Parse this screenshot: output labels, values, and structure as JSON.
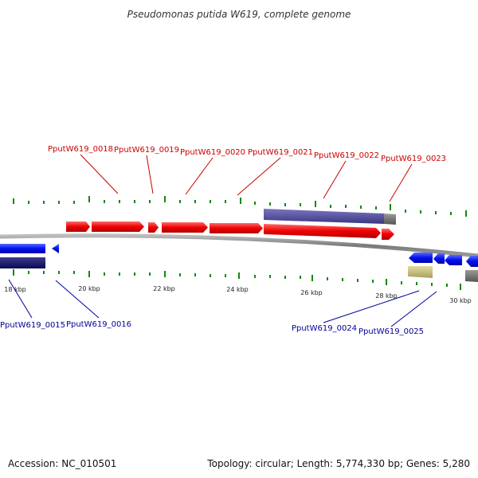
{
  "title": "Pseudomonas putida W619, complete genome",
  "footer": {
    "accession": "Accession: NC_010501",
    "summary": "Topology: circular; Length: 5,774,330 bp; Genes: 5,280"
  },
  "colors": {
    "forward_gene": "#ff0000",
    "reverse_gene": "#0000ff",
    "forward_label": "#cc0000",
    "reverse_label": "#000099",
    "tick": "#118811",
    "backbone": "#888888"
  },
  "ticks": [
    "18 kbp",
    "20 kbp",
    "22 kbp",
    "24 kbp",
    "26 kbp",
    "28 kbp",
    "30 kbp"
  ],
  "forward_labels": [
    "PputW619_0018",
    "PputW619_0019",
    "PputW619_0020",
    "PputW619_0021",
    "PputW619_0022",
    "PputW619_0023"
  ],
  "reverse_labels": [
    "PputW619_0015",
    "PputW619_0016",
    "PputW619_0024",
    "PputW619_0025"
  ]
}
